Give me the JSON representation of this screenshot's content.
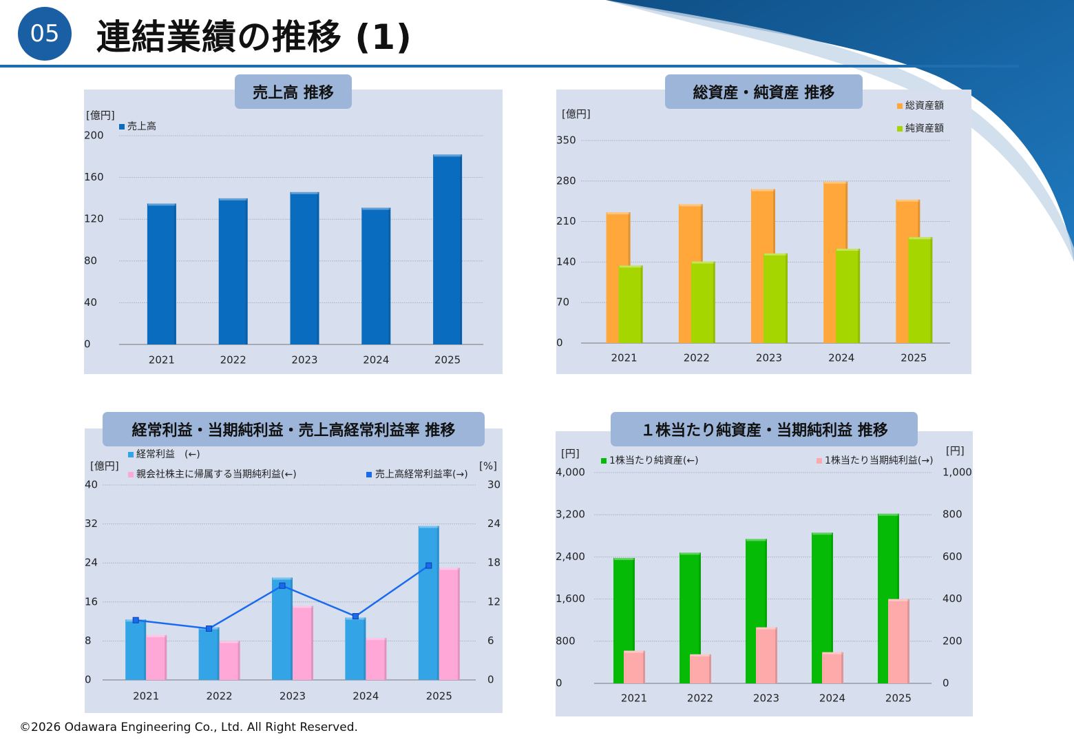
{
  "badge": "05",
  "title": "連結業績の推移 (1)",
  "footer": "©2026 Odawara Engineering Co., Ltd. All Right Reserved.",
  "colors": {
    "accent": "#1f6fb0",
    "panel_bg": "#d7dfee",
    "title_bg": "#9db5d8",
    "sales": "#0a6cbf",
    "total_assets": "#ffa73a",
    "net_assets": "#a6d600",
    "ordinary_profit": "#33a4e6",
    "net_income": "#ffa8d8",
    "margin_line": "#1a6aee",
    "bps": "#06bb06",
    "eps": "#ffaaaa"
  },
  "chart_data": [
    {
      "id": "sales",
      "type": "bar",
      "title": "売上高 推移",
      "unit": "[億円]",
      "categories": [
        "2021",
        "2022",
        "2023",
        "2024",
        "2025"
      ],
      "series": [
        {
          "name": "売上高",
          "values": [
            135,
            140,
            146,
            131,
            182
          ]
        }
      ],
      "ylim": [
        0,
        200
      ],
      "yticks": [
        "0",
        "40",
        "80",
        "120",
        "160",
        "200"
      ],
      "grid": true,
      "legend_position": "top-left"
    },
    {
      "id": "assets",
      "type": "bar",
      "title": "総資産・純資産 推移",
      "unit": "[億円]",
      "categories": [
        "2021",
        "2022",
        "2023",
        "2024",
        "2025"
      ],
      "series": [
        {
          "name": "総資産額",
          "values": [
            226,
            240,
            266,
            279,
            248
          ]
        },
        {
          "name": "純資産額",
          "values": [
            134,
            141,
            155,
            163,
            183
          ]
        }
      ],
      "ylim": [
        0,
        350
      ],
      "yticks": [
        "0",
        "70",
        "140",
        "210",
        "280",
        "350"
      ],
      "grid": true,
      "legend_position": "top-right"
    },
    {
      "id": "profit",
      "type": "bar",
      "title": "経常利益・当期純利益・売上高経常利益率 推移",
      "unit_left": "[億円]",
      "unit_right": "[%]",
      "categories": [
        "2021",
        "2022",
        "2023",
        "2024",
        "2025"
      ],
      "series": [
        {
          "name": "経常利益　(←)",
          "axis": "left",
          "values": [
            12.4,
            10.8,
            21.0,
            12.8,
            31.6
          ]
        },
        {
          "name": "親会社株主に帰属する当期純利益(←)",
          "axis": "left",
          "values": [
            9.2,
            8.0,
            15.2,
            8.6,
            23.0
          ]
        },
        {
          "name": "売上高経常利益率(→)",
          "axis": "right",
          "type": "line",
          "values": [
            9.2,
            7.9,
            14.5,
            9.8,
            17.6
          ]
        }
      ],
      "ylim_left": [
        0,
        40
      ],
      "ylim_right": [
        0,
        30
      ],
      "yticks_left": [
        "0",
        "8",
        "16",
        "24",
        "32",
        "40"
      ],
      "yticks_right": [
        "0",
        "6",
        "12",
        "18",
        "24",
        "30"
      ],
      "grid": true,
      "legend_position": "top"
    },
    {
      "id": "pershare",
      "type": "bar",
      "title": "１株当たり純資産・当期純利益 推移",
      "unit_left": "[円]",
      "unit_right": "[円]",
      "categories": [
        "2021",
        "2022",
        "2023",
        "2024",
        "2025"
      ],
      "series": [
        {
          "name": "1株当たり純資産(←)",
          "axis": "left",
          "values": [
            2380,
            2480,
            2740,
            2860,
            3220
          ]
        },
        {
          "name": "1株当たり当期純利益(→)",
          "axis": "right",
          "values": [
            155,
            138,
            266,
            148,
            400
          ]
        }
      ],
      "ylim_left": [
        0,
        4000
      ],
      "ylim_right": [
        0,
        1000
      ],
      "yticks_left": [
        "0",
        "800",
        "1,600",
        "2,400",
        "3,200",
        "4,000"
      ],
      "yticks_right": [
        "0",
        "200",
        "400",
        "600",
        "800",
        "1,000"
      ],
      "grid": true,
      "legend_position": "top"
    }
  ]
}
